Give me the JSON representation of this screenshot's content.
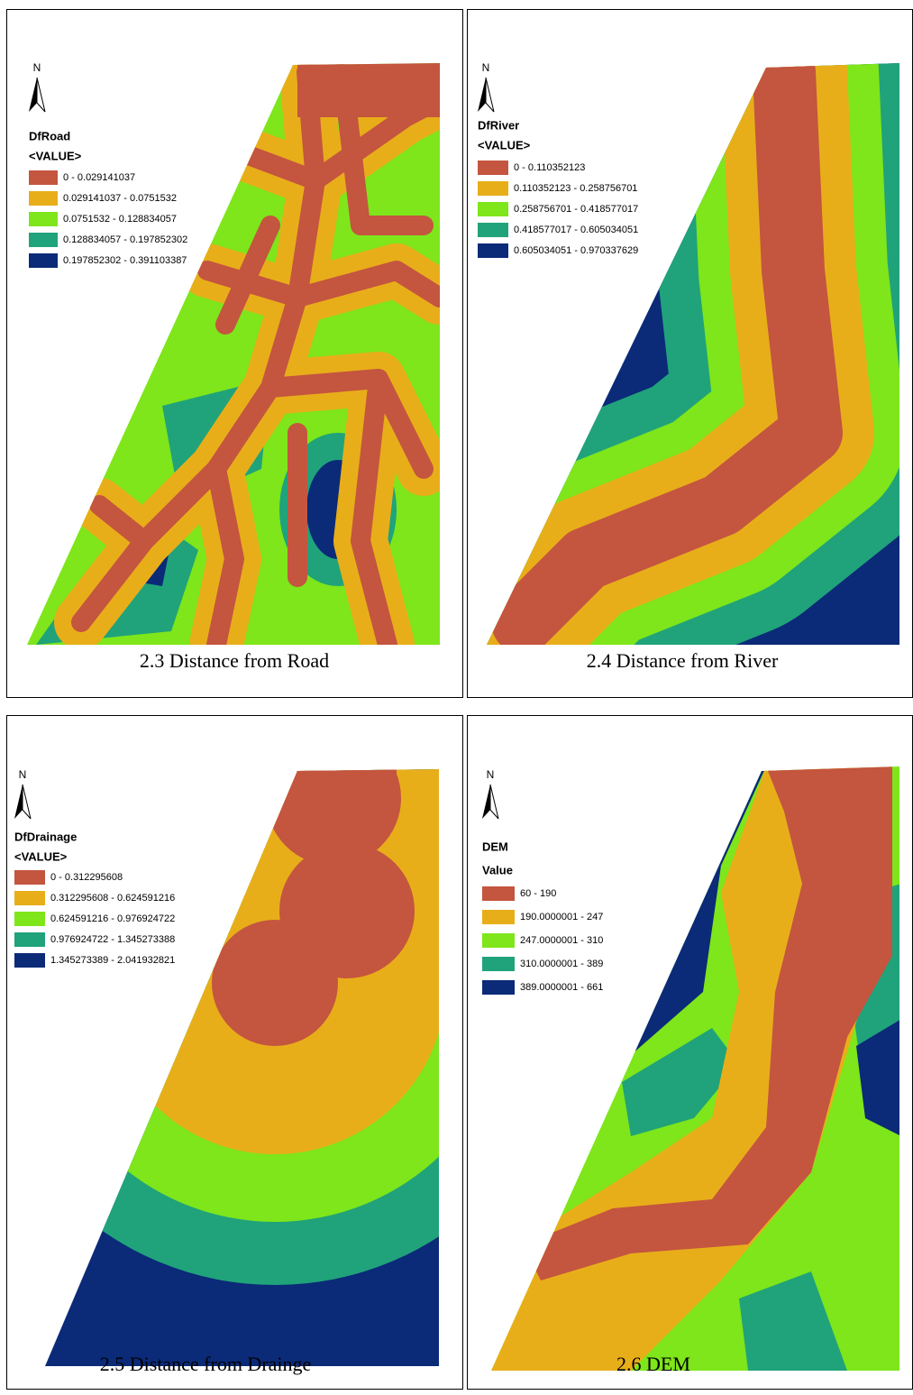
{
  "panels": [
    {
      "north": "N",
      "legend": {
        "title": "DfRoad",
        "field": "<VALUE>",
        "items": [
          {
            "label": "0 - 0.029141037",
            "color": "#c4553f"
          },
          {
            "label": "0.029141037 - 0.0751532",
            "color": "#e8ae1a"
          },
          {
            "label": "0.0751532 - 0.128834057",
            "color": "#7ee61a"
          },
          {
            "label": "0.128834057 - 0.197852302",
            "color": "#20a37a"
          },
          {
            "label": "0.197852302 - 0.391103387",
            "color": "#0b2a78"
          }
        ]
      },
      "caption": "2.3 Distance from Road"
    },
    {
      "north": "N",
      "legend": {
        "title": "DfRiver",
        "field": "<VALUE>",
        "items": [
          {
            "label": "0 - 0.110352123",
            "color": "#c4553f"
          },
          {
            "label": "0.110352123 - 0.258756701",
            "color": "#e8ae1a"
          },
          {
            "label": "0.258756701 - 0.418577017",
            "color": "#7ee61a"
          },
          {
            "label": "0.418577017 - 0.605034051",
            "color": "#20a37a"
          },
          {
            "label": "0.605034051 - 0.970337629",
            "color": "#0b2a78"
          }
        ]
      },
      "caption": "2.4 Distance from River"
    },
    {
      "north": "N",
      "legend": {
        "title": "DfDrainage",
        "field": "<VALUE>",
        "items": [
          {
            "label": "0 - 0.312295608",
            "color": "#c4553f"
          },
          {
            "label": "0.312295608 - 0.624591216",
            "color": "#e8ae1a"
          },
          {
            "label": "0.624591216 - 0.976924722",
            "color": "#7ee61a"
          },
          {
            "label": "0.976924722 - 1.345273388",
            "color": "#20a37a"
          },
          {
            "label": "1.345273389 - 2.041932821",
            "color": "#0b2a78"
          }
        ]
      },
      "caption": "2.5 Distance from Drainge"
    },
    {
      "north": "N",
      "legend": {
        "title": "DEM",
        "field": "Value",
        "items": [
          {
            "label": "60 - 190",
            "color": "#c4553f"
          },
          {
            "label": "190.0000001 - 247",
            "color": "#e8ae1a"
          },
          {
            "label": "247.0000001 - 310",
            "color": "#7ee61a"
          },
          {
            "label": "310.0000001 - 389",
            "color": "#20a37a"
          },
          {
            "label": "389.0000001 - 661",
            "color": "#0b2a78"
          }
        ]
      },
      "caption": "2.6 DEM"
    }
  ]
}
